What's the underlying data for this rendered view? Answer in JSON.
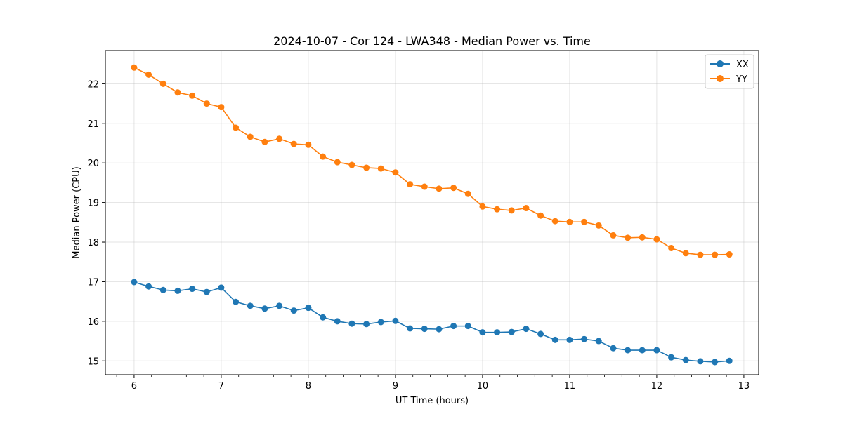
{
  "chart_data": {
    "type": "line",
    "title": "2024-10-07 - Cor 124 - LWA348 - Median Power vs. Time",
    "xlabel": "UT Time (hours)",
    "ylabel": "Median Power (CPU)",
    "xlim": [
      5.67,
      13.17
    ],
    "ylim": [
      14.65,
      22.84
    ],
    "xticks": [
      6,
      7,
      8,
      9,
      10,
      11,
      12,
      13
    ],
    "yticks": [
      15,
      16,
      17,
      18,
      19,
      20,
      21,
      22
    ],
    "x_minor_step": 0.2,
    "grid": true,
    "legend_position": "top-right",
    "x": [
      6.0,
      6.1667,
      6.3333,
      6.5,
      6.6667,
      6.8333,
      7.0,
      7.1667,
      7.3333,
      7.5,
      7.6667,
      7.8333,
      8.0,
      8.1667,
      8.3333,
      8.5,
      8.6667,
      8.8333,
      9.0,
      9.1667,
      9.3333,
      9.5,
      9.6667,
      9.8333,
      10.0,
      10.1667,
      10.3333,
      10.5,
      10.6667,
      10.8333,
      11.0,
      11.1667,
      11.3333,
      11.5,
      11.6667,
      11.8333,
      12.0,
      12.1667,
      12.3333,
      12.5,
      12.6667,
      12.8333
    ],
    "series": [
      {
        "name": "XX",
        "color": "#1f77b4",
        "values": [
          16.99,
          16.88,
          16.79,
          16.77,
          16.82,
          16.74,
          16.85,
          16.49,
          16.39,
          16.32,
          16.39,
          16.27,
          16.34,
          16.1,
          16.0,
          15.94,
          15.93,
          15.98,
          16.01,
          15.82,
          15.81,
          15.8,
          15.88,
          15.88,
          15.72,
          15.72,
          15.73,
          15.81,
          15.68,
          15.53,
          15.53,
          15.55,
          15.5,
          15.32,
          15.27,
          15.27,
          15.27,
          15.09,
          15.02,
          14.99,
          14.97,
          15.0
        ]
      },
      {
        "name": "YY",
        "color": "#ff7f0e",
        "values": [
          22.41,
          22.23,
          22.0,
          21.78,
          21.7,
          21.5,
          21.41,
          20.89,
          20.66,
          20.53,
          20.61,
          20.48,
          20.46,
          20.16,
          20.02,
          19.95,
          19.88,
          19.86,
          19.76,
          19.46,
          19.4,
          19.35,
          19.37,
          19.22,
          18.9,
          18.83,
          18.8,
          18.86,
          18.67,
          18.53,
          18.51,
          18.51,
          18.42,
          18.17,
          18.11,
          18.12,
          18.07,
          17.85,
          17.72,
          17.68,
          17.68,
          17.69
        ]
      }
    ]
  }
}
